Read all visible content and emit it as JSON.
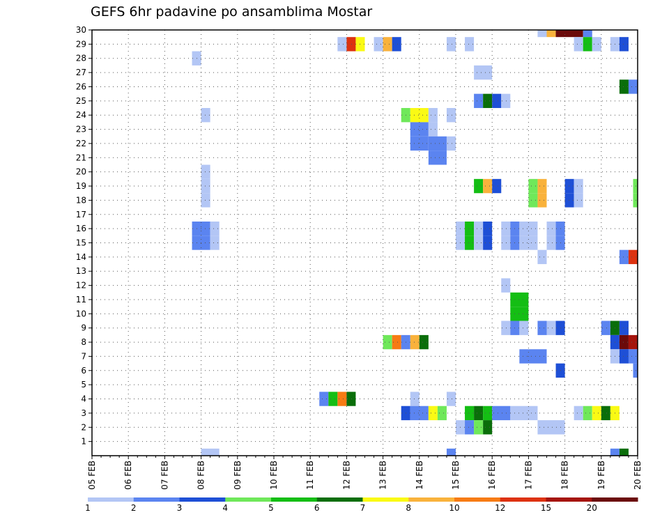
{
  "chart_data": {
    "type": "heatmap",
    "title": "GEFS 6hr padavine po ansamblima Mostar",
    "x_tick_labels": [
      "05 FEB",
      "06 FEB",
      "07 FEB",
      "08 FEB",
      "09 FEB",
      "10 FEB",
      "11 FEB",
      "12 FEB",
      "13 FEB",
      "14 FEB",
      "15 FEB",
      "16 FEB",
      "17 FEB",
      "18 FEB",
      "19 FEB",
      "20 FEB"
    ],
    "y_tick_labels": [
      "1",
      "2",
      "3",
      "4",
      "5",
      "6",
      "7",
      "8",
      "9",
      "10",
      "11",
      "12",
      "13",
      "14",
      "15",
      "16",
      "17",
      "18",
      "19",
      "20",
      "21",
      "22",
      "23",
      "24",
      "25",
      "26",
      "27",
      "28",
      "29",
      "30"
    ],
    "ylim": [
      0,
      30
    ],
    "x_range_hours": [
      0,
      360
    ],
    "time_step_hours": 6,
    "grid": true,
    "colorbar": {
      "labels": [
        "1",
        "2",
        "3",
        "4",
        "5",
        "6",
        "7",
        "8",
        "10",
        "12",
        "15",
        "20"
      ],
      "colors": [
        "#b3c6f5",
        "#5b84f0",
        "#1e4fd6",
        "#6fe85a",
        "#14be14",
        "#0a6e0a",
        "#fafa14",
        "#f9b23c",
        "#f77b14",
        "#dd3210",
        "#a5140c",
        "#6b0a0a"
      ]
    },
    "cells": [
      {
        "member": 30,
        "h": [
          294,
          300
        ],
        "c": 0
      },
      {
        "member": 30,
        "h": [
          300,
          306
        ],
        "c": 7
      },
      {
        "member": 30,
        "h": [
          306,
          324
        ],
        "c": 11
      },
      {
        "member": 30,
        "h": [
          324,
          330
        ],
        "c": 1
      },
      {
        "member": 29,
        "h": [
          162,
          168
        ],
        "c": 0
      },
      {
        "member": 29,
        "h": [
          168,
          174
        ],
        "c": 9
      },
      {
        "member": 29,
        "h": [
          174,
          180
        ],
        "c": 6
      },
      {
        "member": 29,
        "h": [
          186,
          192
        ],
        "c": 0
      },
      {
        "member": 29,
        "h": [
          192,
          198
        ],
        "c": 7
      },
      {
        "member": 29,
        "h": [
          198,
          204
        ],
        "c": 2
      },
      {
        "member": 29,
        "h": [
          234,
          240
        ],
        "c": 0
      },
      {
        "member": 29,
        "h": [
          246,
          252
        ],
        "c": 0
      },
      {
        "member": 29,
        "h": [
          318,
          324
        ],
        "c": 0
      },
      {
        "member": 29,
        "h": [
          324,
          330
        ],
        "c": 4
      },
      {
        "member": 29,
        "h": [
          330,
          336
        ],
        "c": 0
      },
      {
        "member": 29,
        "h": [
          342,
          348
        ],
        "c": 0
      },
      {
        "member": 29,
        "h": [
          348,
          354
        ],
        "c": 2
      },
      {
        "member": 28,
        "h": [
          66,
          72
        ],
        "c": 0
      },
      {
        "member": 27,
        "h": [
          252,
          264
        ],
        "c": 0
      },
      {
        "member": 26,
        "h": [
          348,
          354
        ],
        "c": 5
      },
      {
        "member": 26,
        "h": [
          354,
          360
        ],
        "c": 1
      },
      {
        "member": 25,
        "h": [
          252,
          258
        ],
        "c": 1
      },
      {
        "member": 25,
        "h": [
          258,
          264
        ],
        "c": 5
      },
      {
        "member": 25,
        "h": [
          264,
          270
        ],
        "c": 2
      },
      {
        "member": 25,
        "h": [
          270,
          276
        ],
        "c": 0
      },
      {
        "member": 24,
        "h": [
          72,
          78
        ],
        "c": 0
      },
      {
        "member": 24,
        "h": [
          204,
          210
        ],
        "c": 3
      },
      {
        "member": 24,
        "h": [
          210,
          222
        ],
        "c": 6
      },
      {
        "member": 24,
        "h": [
          222,
          228
        ],
        "c": 0
      },
      {
        "member": 24,
        "h": [
          234,
          240
        ],
        "c": 0
      },
      {
        "member": 23,
        "h": [
          210,
          222
        ],
        "c": 1
      },
      {
        "member": 23,
        "h": [
          222,
          228
        ],
        "c": 0
      },
      {
        "member": 22,
        "h": [
          210,
          222
        ],
        "c": 1
      },
      {
        "member": 22,
        "h": [
          222,
          234
        ],
        "c": 1
      },
      {
        "member": 22,
        "h": [
          234,
          240
        ],
        "c": 0
      },
      {
        "member": 21,
        "h": [
          222,
          234
        ],
        "c": 1
      },
      {
        "member": 20,
        "h": [
          72,
          78
        ],
        "c": 0
      },
      {
        "member": 19,
        "h": [
          72,
          78
        ],
        "c": 0
      },
      {
        "member": 19,
        "h": [
          252,
          258
        ],
        "c": 4
      },
      {
        "member": 19,
        "h": [
          258,
          264
        ],
        "c": 7
      },
      {
        "member": 19,
        "h": [
          264,
          270
        ],
        "c": 2
      },
      {
        "member": 19,
        "h": [
          288,
          294
        ],
        "c": 3
      },
      {
        "member": 19,
        "h": [
          294,
          300
        ],
        "c": 7
      },
      {
        "member": 19,
        "h": [
          312,
          318
        ],
        "c": 2
      },
      {
        "member": 19,
        "h": [
          318,
          324
        ],
        "c": 0
      },
      {
        "member": 19,
        "h": [
          357,
          360
        ],
        "c": 3
      },
      {
        "member": 18,
        "h": [
          72,
          78
        ],
        "c": 0
      },
      {
        "member": 18,
        "h": [
          288,
          294
        ],
        "c": 3
      },
      {
        "member": 18,
        "h": [
          294,
          300
        ],
        "c": 7
      },
      {
        "member": 18,
        "h": [
          312,
          318
        ],
        "c": 2
      },
      {
        "member": 18,
        "h": [
          318,
          324
        ],
        "c": 0
      },
      {
        "member": 18,
        "h": [
          357,
          360
        ],
        "c": 3
      },
      {
        "member": 16,
        "h": [
          66,
          78
        ],
        "c": 1
      },
      {
        "member": 16,
        "h": [
          78,
          84
        ],
        "c": 0
      },
      {
        "member": 16,
        "h": [
          240,
          246
        ],
        "c": 0
      },
      {
        "member": 16,
        "h": [
          246,
          252
        ],
        "c": 4
      },
      {
        "member": 16,
        "h": [
          252,
          258
        ],
        "c": 0
      },
      {
        "member": 16,
        "h": [
          258,
          264
        ],
        "c": 2
      },
      {
        "member": 16,
        "h": [
          270,
          276
        ],
        "c": 0
      },
      {
        "member": 16,
        "h": [
          276,
          282
        ],
        "c": 1
      },
      {
        "member": 16,
        "h": [
          282,
          294
        ],
        "c": 0
      },
      {
        "member": 16,
        "h": [
          300,
          306
        ],
        "c": 0
      },
      {
        "member": 16,
        "h": [
          306,
          312
        ],
        "c": 1
      },
      {
        "member": 15,
        "h": [
          66,
          78
        ],
        "c": 1
      },
      {
        "member": 15,
        "h": [
          78,
          84
        ],
        "c": 0
      },
      {
        "member": 15,
        "h": [
          240,
          246
        ],
        "c": 0
      },
      {
        "member": 15,
        "h": [
          246,
          252
        ],
        "c": 4
      },
      {
        "member": 15,
        "h": [
          252,
          258
        ],
        "c": 0
      },
      {
        "member": 15,
        "h": [
          258,
          264
        ],
        "c": 2
      },
      {
        "member": 15,
        "h": [
          270,
          276
        ],
        "c": 0
      },
      {
        "member": 15,
        "h": [
          276,
          282
        ],
        "c": 1
      },
      {
        "member": 15,
        "h": [
          282,
          294
        ],
        "c": 0
      },
      {
        "member": 15,
        "h": [
          300,
          306
        ],
        "c": 0
      },
      {
        "member": 15,
        "h": [
          306,
          312
        ],
        "c": 1
      },
      {
        "member": 14,
        "h": [
          294,
          300
        ],
        "c": 0
      },
      {
        "member": 14,
        "h": [
          348,
          354
        ],
        "c": 1
      },
      {
        "member": 14,
        "h": [
          354,
          360
        ],
        "c": 9
      },
      {
        "member": 12,
        "h": [
          270,
          276
        ],
        "c": 0
      },
      {
        "member": 11,
        "h": [
          276,
          288
        ],
        "c": 4
      },
      {
        "member": 10,
        "h": [
          276,
          288
        ],
        "c": 4
      },
      {
        "member": 9,
        "h": [
          270,
          276
        ],
        "c": 0
      },
      {
        "member": 9,
        "h": [
          276,
          282
        ],
        "c": 1
      },
      {
        "member": 9,
        "h": [
          282,
          288
        ],
        "c": 0
      },
      {
        "member": 9,
        "h": [
          294,
          300
        ],
        "c": 1
      },
      {
        "member": 9,
        "h": [
          300,
          306
        ],
        "c": 0
      },
      {
        "member": 9,
        "h": [
          306,
          312
        ],
        "c": 2
      },
      {
        "member": 9,
        "h": [
          336,
          342
        ],
        "c": 1
      },
      {
        "member": 9,
        "h": [
          342,
          348
        ],
        "c": 5
      },
      {
        "member": 9,
        "h": [
          348,
          354
        ],
        "c": 2
      },
      {
        "member": 8,
        "h": [
          192,
          198
        ],
        "c": 3
      },
      {
        "member": 8,
        "h": [
          198,
          204
        ],
        "c": 8
      },
      {
        "member": 8,
        "h": [
          204,
          210
        ],
        "c": 1
      },
      {
        "member": 8,
        "h": [
          210,
          216
        ],
        "c": 7
      },
      {
        "member": 8,
        "h": [
          216,
          222
        ],
        "c": 5
      },
      {
        "member": 8,
        "h": [
          342,
          348
        ],
        "c": 2
      },
      {
        "member": 8,
        "h": [
          348,
          354
        ],
        "c": 11
      },
      {
        "member": 8,
        "h": [
          354,
          360
        ],
        "c": 10
      },
      {
        "member": 7,
        "h": [
          282,
          300
        ],
        "c": 1
      },
      {
        "member": 7,
        "h": [
          342,
          348
        ],
        "c": 0
      },
      {
        "member": 7,
        "h": [
          348,
          354
        ],
        "c": 2
      },
      {
        "member": 7,
        "h": [
          354,
          360
        ],
        "c": 1
      },
      {
        "member": 6,
        "h": [
          306,
          312
        ],
        "c": 2
      },
      {
        "member": 6,
        "h": [
          357,
          360
        ],
        "c": 1
      },
      {
        "member": 4,
        "h": [
          150,
          156
        ],
        "c": 1
      },
      {
        "member": 4,
        "h": [
          156,
          162
        ],
        "c": 4
      },
      {
        "member": 4,
        "h": [
          162,
          168
        ],
        "c": 8
      },
      {
        "member": 4,
        "h": [
          168,
          174
        ],
        "c": 5
      },
      {
        "member": 4,
        "h": [
          210,
          216
        ],
        "c": 0
      },
      {
        "member": 4,
        "h": [
          234,
          240
        ],
        "c": 0
      },
      {
        "member": 3,
        "h": [
          204,
          210
        ],
        "c": 2
      },
      {
        "member": 3,
        "h": [
          210,
          222
        ],
        "c": 1
      },
      {
        "member": 3,
        "h": [
          222,
          228
        ],
        "c": 6
      },
      {
        "member": 3,
        "h": [
          228,
          234
        ],
        "c": 3
      },
      {
        "member": 3,
        "h": [
          246,
          252
        ],
        "c": 4
      },
      {
        "member": 3,
        "h": [
          252,
          258
        ],
        "c": 5
      },
      {
        "member": 3,
        "h": [
          258,
          264
        ],
        "c": 4
      },
      {
        "member": 3,
        "h": [
          264,
          276
        ],
        "c": 1
      },
      {
        "member": 3,
        "h": [
          276,
          294
        ],
        "c": 0
      },
      {
        "member": 3,
        "h": [
          318,
          324
        ],
        "c": 0
      },
      {
        "member": 3,
        "h": [
          324,
          330
        ],
        "c": 3
      },
      {
        "member": 3,
        "h": [
          330,
          336
        ],
        "c": 6
      },
      {
        "member": 3,
        "h": [
          336,
          342
        ],
        "c": 5
      },
      {
        "member": 3,
        "h": [
          342,
          348
        ],
        "c": 6
      },
      {
        "member": 2,
        "h": [
          240,
          246
        ],
        "c": 0
      },
      {
        "member": 2,
        "h": [
          246,
          252
        ],
        "c": 1
      },
      {
        "member": 2,
        "h": [
          252,
          258
        ],
        "c": 3
      },
      {
        "member": 2,
        "h": [
          258,
          264
        ],
        "c": 5
      },
      {
        "member": 2,
        "h": [
          294,
          312
        ],
        "c": 0
      },
      {
        "member": 0,
        "h": [
          72,
          84
        ],
        "c": 0
      },
      {
        "member": 0,
        "h": [
          234,
          240
        ],
        "c": 1
      },
      {
        "member": 0,
        "h": [
          342,
          348
        ],
        "c": 1
      },
      {
        "member": 0,
        "h": [
          348,
          354
        ],
        "c": 5
      }
    ]
  }
}
